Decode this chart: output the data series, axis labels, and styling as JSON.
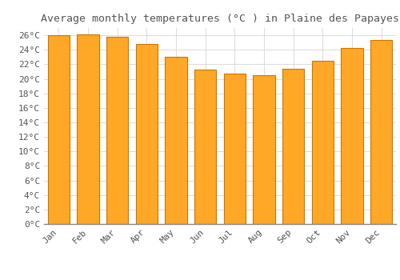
{
  "title": "Average monthly temperatures (°C ) in Plaine des Papayes",
  "months": [
    "Jan",
    "Feb",
    "Mar",
    "Apr",
    "May",
    "Jun",
    "Jul",
    "Aug",
    "Sep",
    "Oct",
    "Nov",
    "Dec"
  ],
  "values": [
    26.0,
    26.1,
    25.8,
    24.8,
    23.0,
    21.3,
    20.7,
    20.5,
    21.4,
    22.5,
    24.2,
    25.3
  ],
  "bar_color": "#FFA726",
  "bar_edge_color": "#CC7700",
  "background_color": "#FFFFFF",
  "grid_color": "#DDDDDD",
  "text_color": "#555555",
  "title_fontsize": 9.5,
  "tick_fontsize": 8,
  "ylim": [
    0,
    27
  ],
  "ytick_step": 2
}
